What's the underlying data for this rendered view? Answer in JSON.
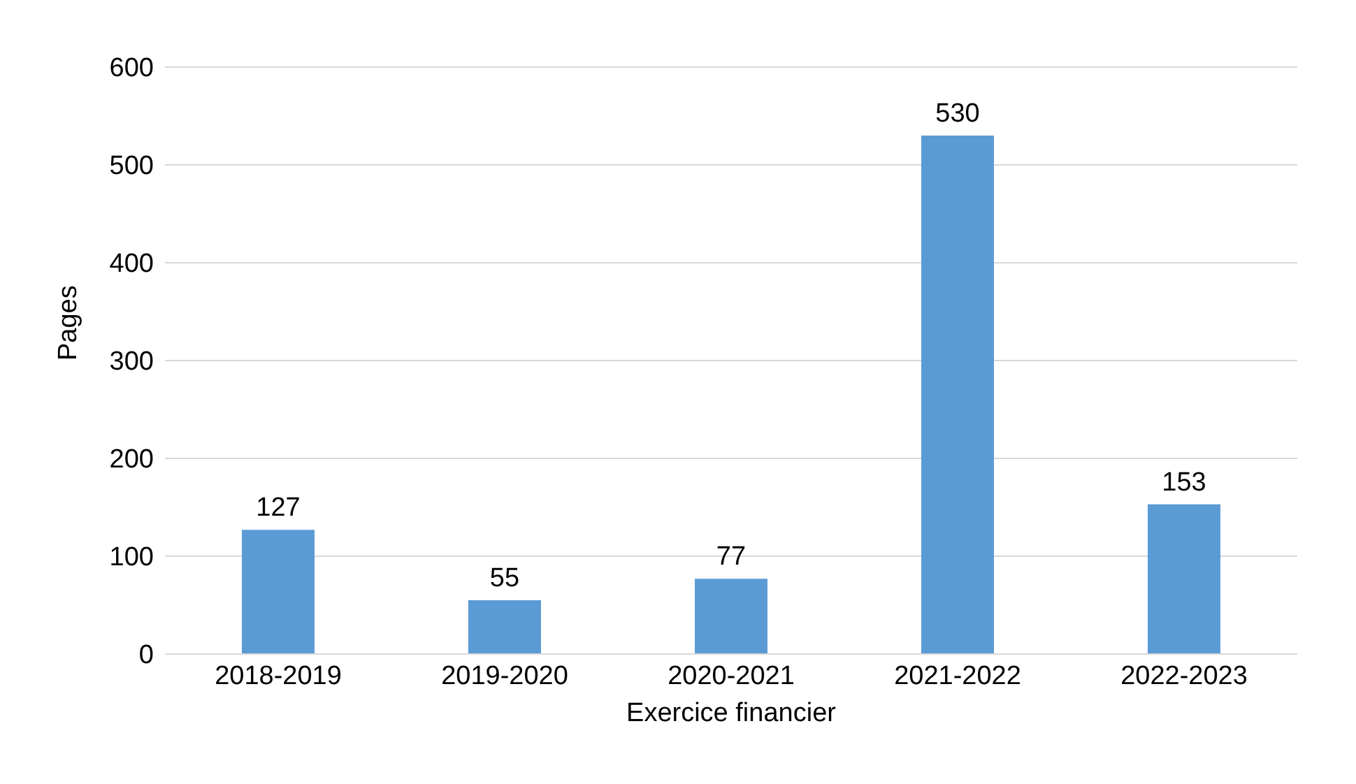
{
  "chart_data": {
    "type": "bar",
    "xlabel": "Exercice financier",
    "ylabel": "Pages",
    "categories": [
      "2018-2019",
      "2019-2020",
      "2020-2021",
      "2021-2022",
      "2022-2023"
    ],
    "values": [
      127,
      55,
      77,
      530,
      153
    ],
    "color": "#5b9bd5",
    "ylim": [
      0,
      600
    ],
    "yticks": [
      0,
      100,
      200,
      300,
      400,
      500,
      600
    ],
    "grid": "y",
    "data_labels": true,
    "legend": false
  }
}
